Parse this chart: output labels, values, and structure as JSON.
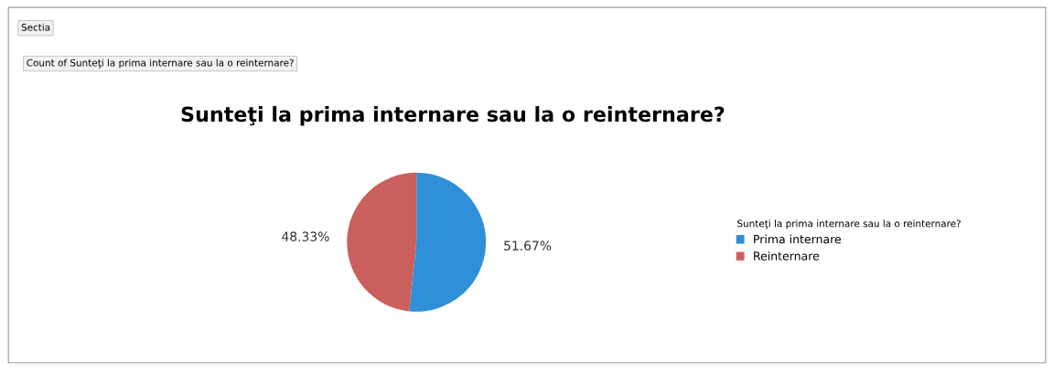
{
  "chart_data": {
    "type": "pie",
    "title": "Sunteţi la prima internare sau la o reinternare?",
    "legend_title": "Sunteţi la prima internare sau la o reinternare?",
    "categories": [
      "Prima internare",
      "Reinternare"
    ],
    "values": [
      51.67,
      48.33
    ],
    "colors": [
      "#2f8fd8",
      "#c9605e"
    ],
    "value_labels": [
      "51.67%",
      "48.33%"
    ],
    "legend": "right",
    "annotations": [
      "Sectia",
      "Count of Sunteţi la prima internare sau la o reinternare?"
    ]
  }
}
